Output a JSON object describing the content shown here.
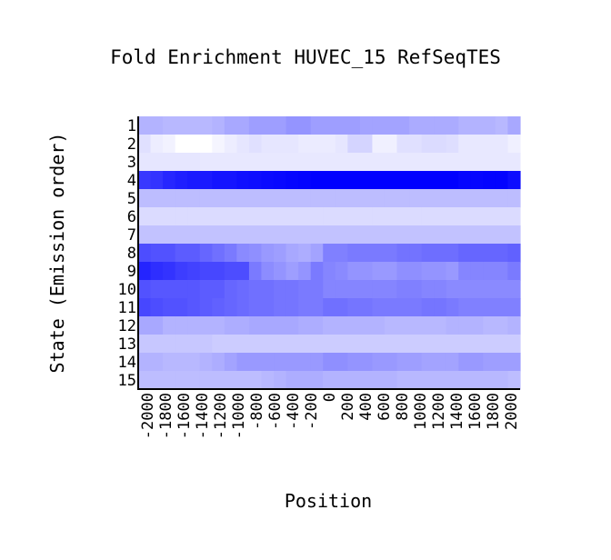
{
  "chart_data": {
    "type": "heatmap",
    "title": "Fold Enrichment HUVEC_15 RefSeqTES",
    "xlabel": "Position",
    "ylabel": "State (Emission order)",
    "x_ticks": [
      "-2000",
      "-1800",
      "-1600",
      "-1400",
      "-1200",
      "-1000",
      "-800",
      "-600",
      "-400",
      "-200",
      "0",
      "200",
      "400",
      "600",
      "800",
      "1000",
      "1200",
      "1400",
      "1600",
      "1800",
      "2000"
    ],
    "y_ticks": [
      "1",
      "2",
      "3",
      "4",
      "5",
      "6",
      "7",
      "8",
      "9",
      "10",
      "11",
      "12",
      "13",
      "14",
      "15"
    ],
    "color_scale": {
      "low": "#ffffff",
      "high": "#0000ff"
    },
    "values": [
      [
        0.3,
        0.3,
        0.28,
        0.28,
        0.28,
        0.28,
        0.3,
        0.34,
        0.34,
        0.38,
        0.38,
        0.38,
        0.42,
        0.42,
        0.38,
        0.38,
        0.38,
        0.38,
        0.36,
        0.36,
        0.36,
        0.36,
        0.33,
        0.33,
        0.33,
        0.33,
        0.3,
        0.3,
        0.3,
        0.28,
        0.34
      ],
      [
        0.12,
        0.07,
        0.05,
        0.0,
        0.0,
        0.0,
        0.04,
        0.07,
        0.1,
        0.12,
        0.1,
        0.1,
        0.1,
        0.08,
        0.08,
        0.08,
        0.1,
        0.17,
        0.17,
        0.06,
        0.06,
        0.12,
        0.12,
        0.14,
        0.14,
        0.13,
        0.09,
        0.09,
        0.09,
        0.09,
        0.06
      ],
      [
        0.1,
        0.1,
        0.1,
        0.1,
        0.1,
        0.09,
        0.09,
        0.09,
        0.09,
        0.09,
        0.09,
        0.09,
        0.09,
        0.09,
        0.09,
        0.09,
        0.09,
        0.09,
        0.09,
        0.09,
        0.09,
        0.09,
        0.09,
        0.09,
        0.09,
        0.09,
        0.09,
        0.09,
        0.09,
        0.09,
        0.09
      ],
      [
        0.78,
        0.8,
        0.85,
        0.88,
        0.9,
        0.9,
        0.92,
        0.92,
        0.94,
        0.95,
        0.96,
        0.97,
        0.98,
        0.99,
        1.0,
        1.0,
        1.0,
        1.0,
        1.0,
        1.0,
        1.0,
        1.0,
        1.0,
        1.0,
        1.0,
        1.0,
        0.98,
        0.98,
        0.99,
        0.99,
        0.95
      ],
      [
        0.26,
        0.26,
        0.26,
        0.26,
        0.26,
        0.26,
        0.26,
        0.26,
        0.26,
        0.26,
        0.26,
        0.26,
        0.26,
        0.26,
        0.26,
        0.26,
        0.26,
        0.26,
        0.26,
        0.26,
        0.26,
        0.26,
        0.26,
        0.26,
        0.26,
        0.26,
        0.26,
        0.26,
        0.26,
        0.26,
        0.26
      ],
      [
        0.14,
        0.14,
        0.14,
        0.14,
        0.14,
        0.14,
        0.14,
        0.14,
        0.14,
        0.14,
        0.14,
        0.14,
        0.14,
        0.14,
        0.14,
        0.14,
        0.14,
        0.14,
        0.14,
        0.14,
        0.14,
        0.14,
        0.14,
        0.14,
        0.14,
        0.14,
        0.14,
        0.14,
        0.14,
        0.14,
        0.14
      ],
      [
        0.24,
        0.24,
        0.24,
        0.24,
        0.24,
        0.24,
        0.24,
        0.24,
        0.24,
        0.24,
        0.24,
        0.24,
        0.24,
        0.24,
        0.24,
        0.24,
        0.24,
        0.24,
        0.24,
        0.24,
        0.24,
        0.24,
        0.24,
        0.24,
        0.24,
        0.24,
        0.24,
        0.24,
        0.24,
        0.24,
        0.24
      ],
      [
        0.7,
        0.68,
        0.68,
        0.64,
        0.64,
        0.6,
        0.56,
        0.52,
        0.46,
        0.44,
        0.4,
        0.38,
        0.34,
        0.32,
        0.36,
        0.5,
        0.5,
        0.52,
        0.52,
        0.52,
        0.52,
        0.55,
        0.55,
        0.57,
        0.57,
        0.57,
        0.6,
        0.6,
        0.6,
        0.6,
        0.62
      ],
      [
        0.86,
        0.82,
        0.8,
        0.76,
        0.74,
        0.72,
        0.72,
        0.7,
        0.7,
        0.52,
        0.45,
        0.42,
        0.38,
        0.42,
        0.52,
        0.48,
        0.46,
        0.42,
        0.42,
        0.4,
        0.4,
        0.44,
        0.44,
        0.42,
        0.42,
        0.4,
        0.48,
        0.48,
        0.48,
        0.48,
        0.52
      ],
      [
        0.68,
        0.66,
        0.66,
        0.66,
        0.66,
        0.64,
        0.64,
        0.6,
        0.58,
        0.56,
        0.56,
        0.54,
        0.54,
        0.52,
        0.52,
        0.48,
        0.48,
        0.48,
        0.48,
        0.48,
        0.48,
        0.5,
        0.5,
        0.48,
        0.48,
        0.46,
        0.46,
        0.46,
        0.46,
        0.46,
        0.46
      ],
      [
        0.72,
        0.7,
        0.68,
        0.68,
        0.66,
        0.64,
        0.62,
        0.6,
        0.58,
        0.56,
        0.56,
        0.54,
        0.54,
        0.52,
        0.52,
        0.56,
        0.56,
        0.54,
        0.54,
        0.52,
        0.52,
        0.52,
        0.52,
        0.54,
        0.54,
        0.52,
        0.5,
        0.5,
        0.5,
        0.5,
        0.5
      ],
      [
        0.34,
        0.34,
        0.3,
        0.3,
        0.3,
        0.3,
        0.3,
        0.32,
        0.32,
        0.34,
        0.34,
        0.34,
        0.34,
        0.32,
        0.32,
        0.3,
        0.3,
        0.3,
        0.3,
        0.3,
        0.28,
        0.28,
        0.28,
        0.28,
        0.28,
        0.3,
        0.3,
        0.3,
        0.28,
        0.28,
        0.3
      ],
      [
        0.22,
        0.22,
        0.22,
        0.22,
        0.22,
        0.22,
        0.2,
        0.2,
        0.2,
        0.2,
        0.2,
        0.2,
        0.2,
        0.2,
        0.2,
        0.2,
        0.2,
        0.2,
        0.2,
        0.2,
        0.2,
        0.2,
        0.2,
        0.2,
        0.2,
        0.2,
        0.2,
        0.2,
        0.2,
        0.2,
        0.2
      ],
      [
        0.3,
        0.3,
        0.28,
        0.28,
        0.28,
        0.3,
        0.32,
        0.36,
        0.4,
        0.4,
        0.4,
        0.4,
        0.4,
        0.4,
        0.4,
        0.44,
        0.44,
        0.42,
        0.42,
        0.4,
        0.4,
        0.38,
        0.38,
        0.36,
        0.36,
        0.36,
        0.4,
        0.4,
        0.38,
        0.38,
        0.38
      ],
      [
        0.26,
        0.26,
        0.26,
        0.26,
        0.26,
        0.26,
        0.26,
        0.26,
        0.26,
        0.26,
        0.28,
        0.3,
        0.32,
        0.32,
        0.32,
        0.3,
        0.3,
        0.3,
        0.3,
        0.3,
        0.3,
        0.28,
        0.28,
        0.28,
        0.28,
        0.28,
        0.28,
        0.28,
        0.28,
        0.28,
        0.26
      ]
    ]
  }
}
